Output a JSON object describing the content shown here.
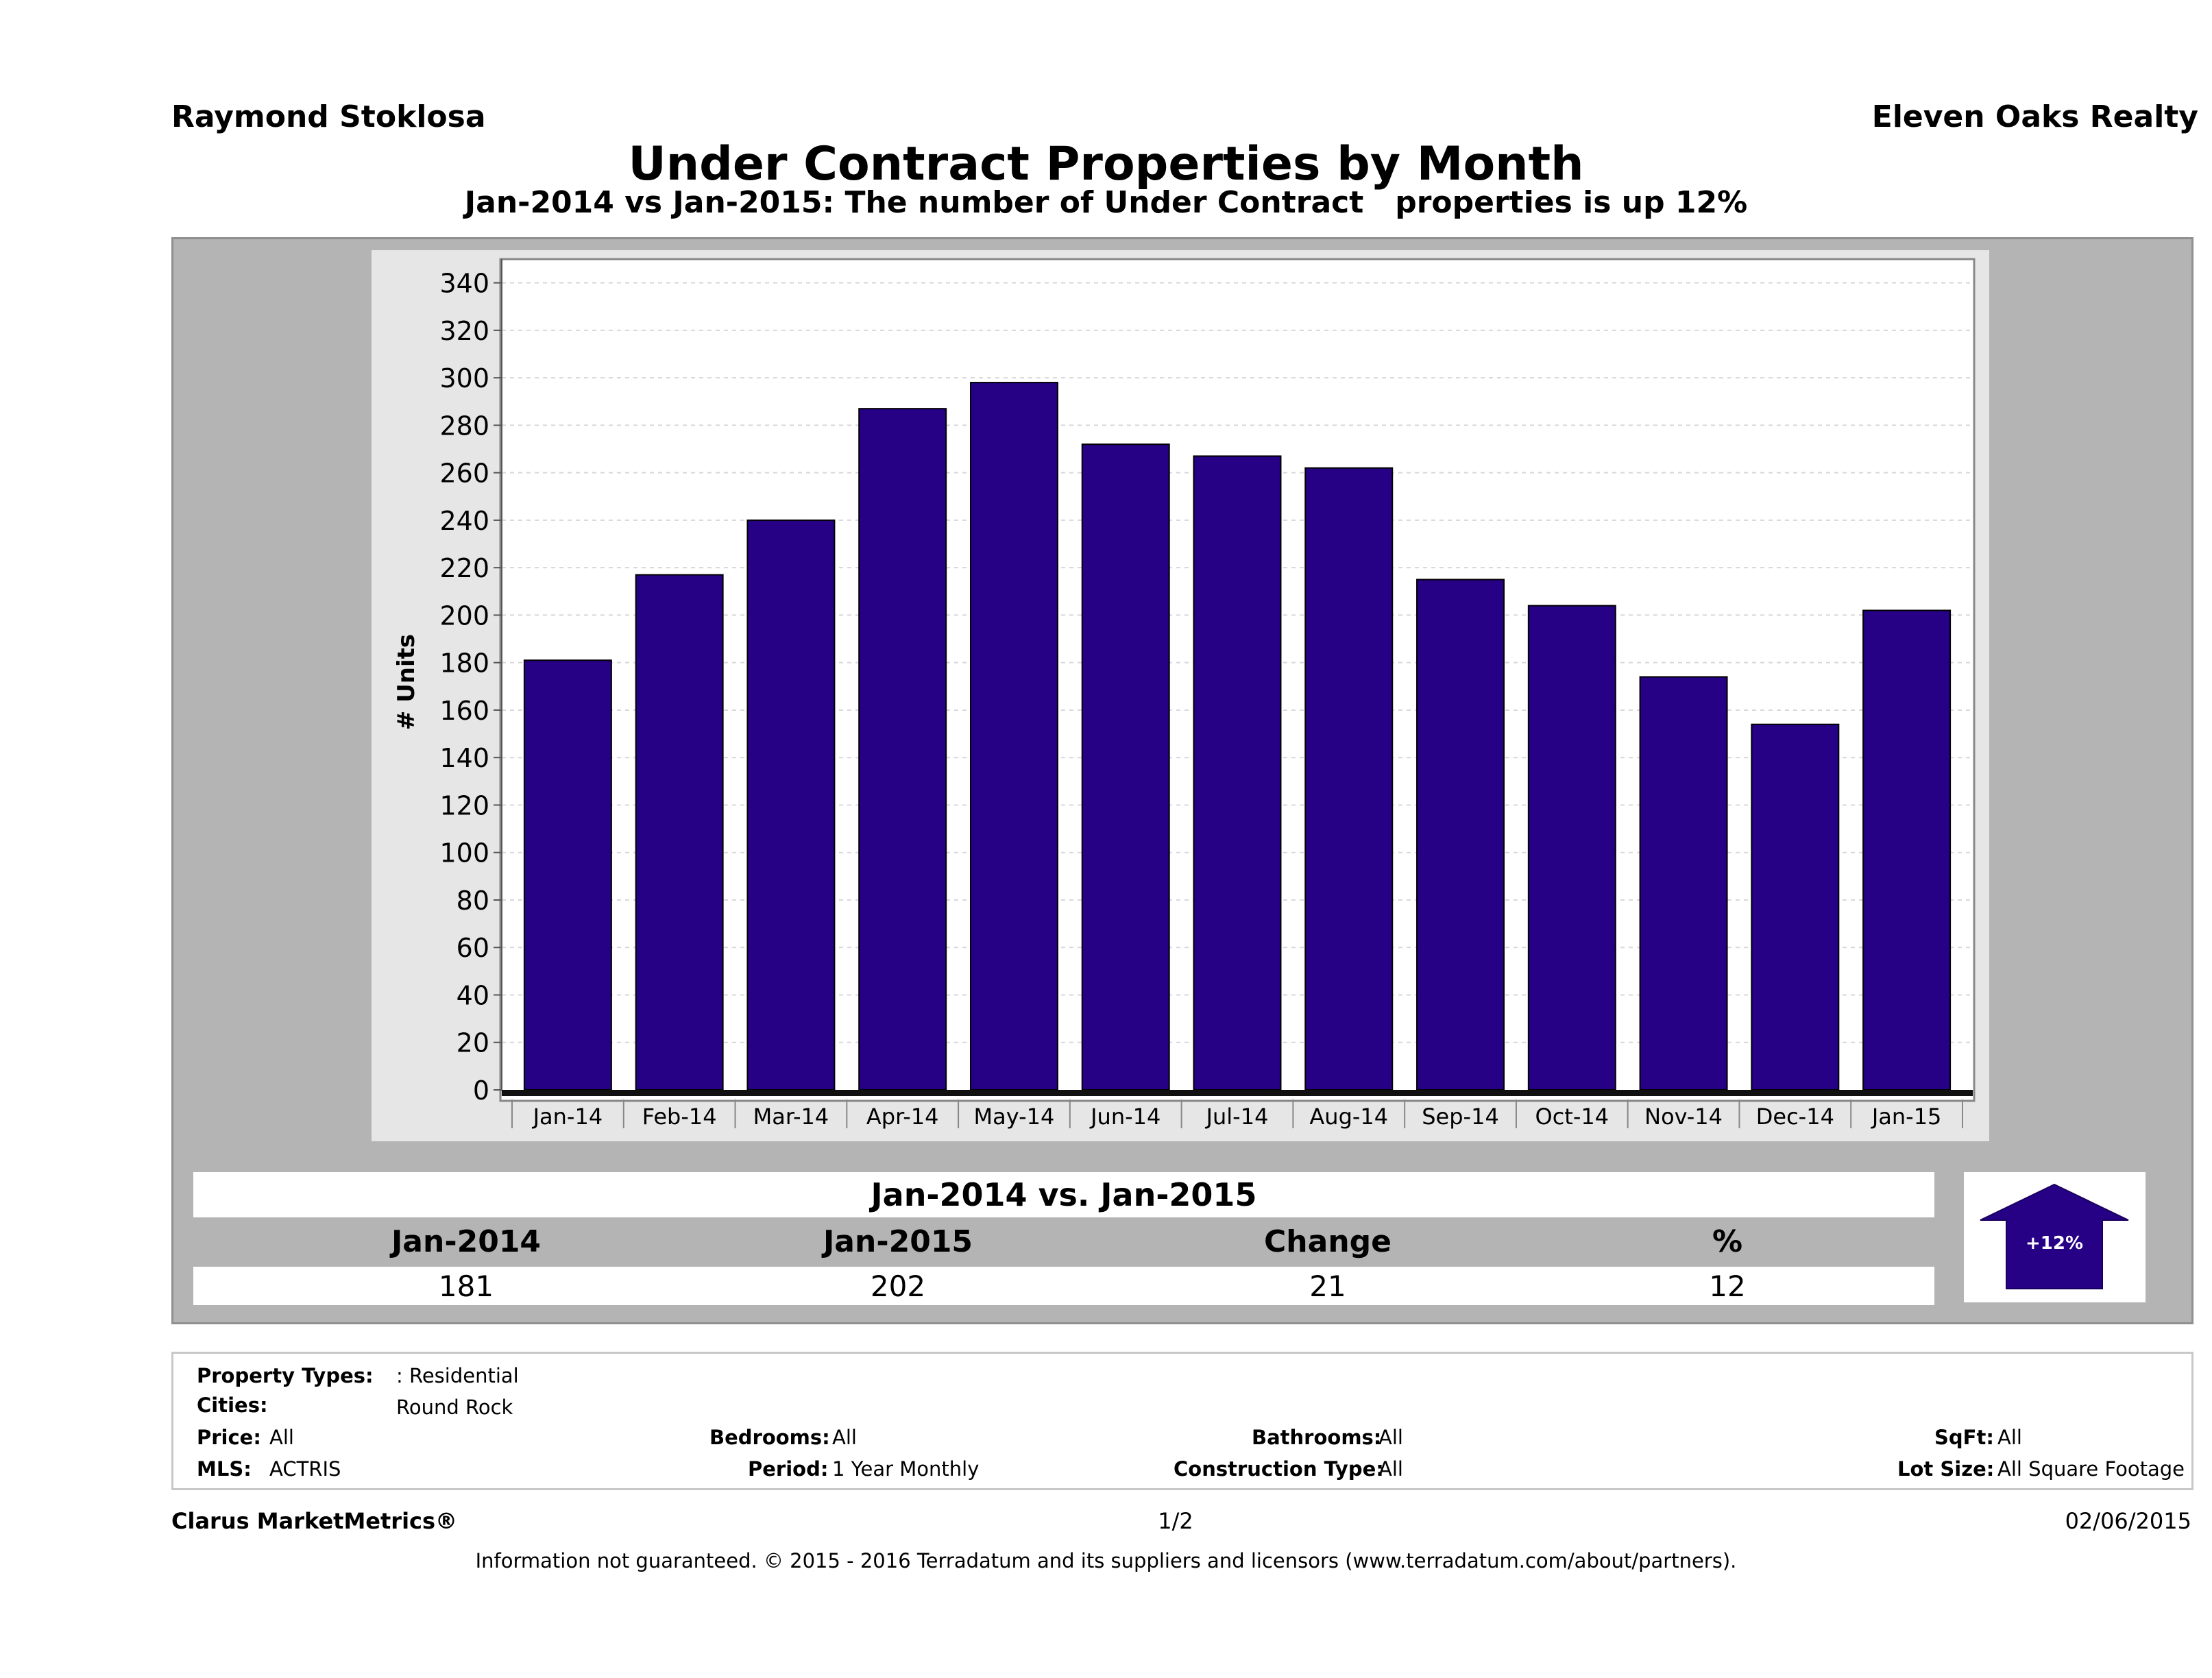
{
  "header": {
    "agent": "Raymond Stoklosa",
    "brokerage": "Eleven Oaks Realty"
  },
  "colors": {
    "bar": "#260085",
    "panel": "#b4b4b4",
    "plot_bg": "#ffffff",
    "chart_bg": "#e6e6e6"
  },
  "chart_data": {
    "type": "bar",
    "title": "Under Contract Properties by Month",
    "subtitle": "Jan-2014 vs Jan-2015: The number of Under Contract   properties is up 12%",
    "ylabel": "# Units",
    "xlabel": "",
    "ylim": [
      0,
      350
    ],
    "yticks": [
      0,
      20,
      40,
      60,
      80,
      100,
      120,
      140,
      160,
      180,
      200,
      220,
      240,
      260,
      280,
      300,
      320,
      340
    ],
    "grid": true,
    "categories": [
      "Jan-14",
      "Feb-14",
      "Mar-14",
      "Apr-14",
      "May-14",
      "Jun-14",
      "Jul-14",
      "Aug-14",
      "Sep-14",
      "Oct-14",
      "Nov-14",
      "Dec-14",
      "Jan-15"
    ],
    "values": [
      181,
      217,
      240,
      287,
      298,
      272,
      267,
      262,
      215,
      204,
      174,
      154,
      202
    ]
  },
  "comparison": {
    "title": "Jan-2014 vs. Jan-2015",
    "labels": [
      "Jan-2014",
      "Jan-2015",
      "Change",
      "%"
    ],
    "values": [
      "181",
      "202",
      "21",
      "12"
    ],
    "badge": "+12%"
  },
  "criteria": {
    "property_types_label": "Property Types:",
    "property_types": ": Residential",
    "cities_label": "Cities:",
    "cities": "Round Rock",
    "price_label": "Price:",
    "price": "All",
    "bedrooms_label": "Bedrooms:",
    "bedrooms": "All",
    "bathrooms_label": "Bathrooms:",
    "bathrooms": "All",
    "sqft_label": "SqFt:",
    "sqft": "All",
    "mls_label": "MLS:",
    "mls": "ACTRIS",
    "period_label": "Period:",
    "period": "1 Year Monthly",
    "construction_label": "Construction Type:",
    "construction": "All",
    "lot_size_label": "Lot Size:",
    "lot_size": "All Square Footage"
  },
  "footer": {
    "product": "Clarus MarketMetrics®",
    "page": "1/2",
    "date": "02/06/2015",
    "disclaimer": "Information not guaranteed. © 2015 - 2016 Terradatum and its suppliers and licensors (www.terradatum.com/about/partners)."
  }
}
